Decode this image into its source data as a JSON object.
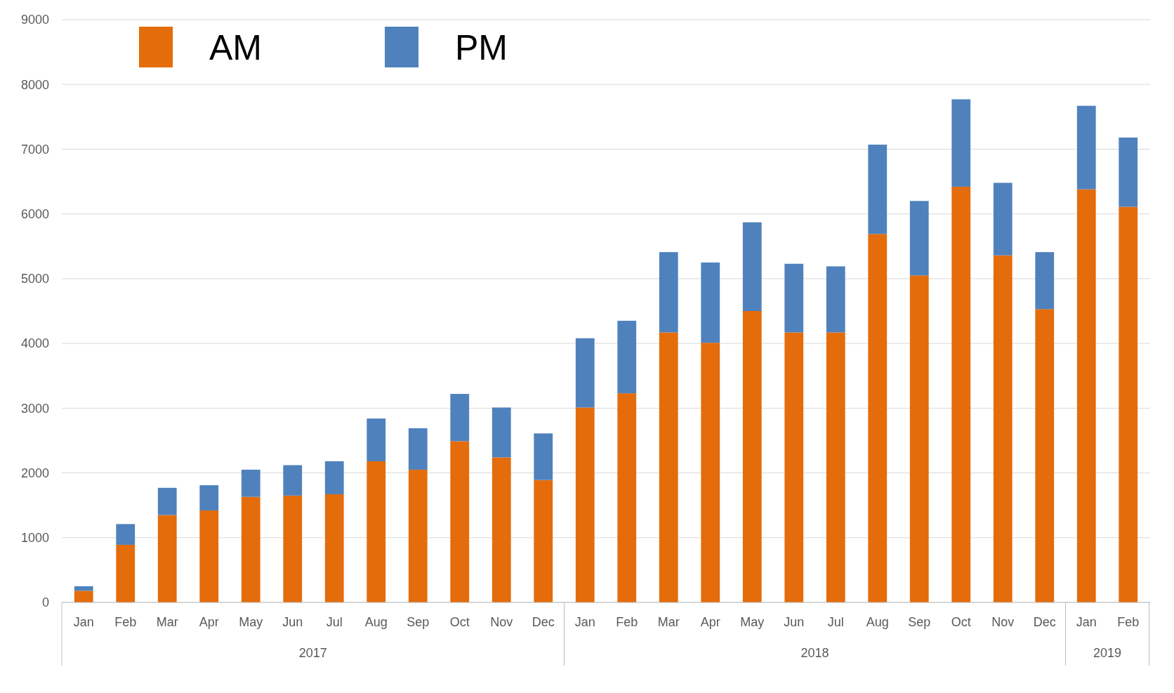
{
  "chart_data": {
    "type": "bar",
    "stacked": true,
    "categories": [
      "Jan",
      "Feb",
      "Mar",
      "Apr",
      "May",
      "Jun",
      "Jul",
      "Aug",
      "Sep",
      "Oct",
      "Nov",
      "Dec",
      "Jan",
      "Feb",
      "Mar",
      "Apr",
      "May",
      "Jun",
      "Jul",
      "Aug",
      "Sep",
      "Oct",
      "Nov",
      "Dec",
      "Jan",
      "Feb"
    ],
    "series": [
      {
        "name": "AM",
        "color": "#e46c0a",
        "values": [
          180,
          890,
          1350,
          1420,
          1630,
          1650,
          1670,
          2180,
          2050,
          2490,
          2240,
          1890,
          3010,
          3230,
          4170,
          4010,
          4500,
          4170,
          4170,
          5690,
          5050,
          6420,
          5360,
          4530,
          6380,
          6110
        ]
      },
      {
        "name": "PM",
        "color": "#4f81bd",
        "values": [
          70,
          320,
          420,
          390,
          420,
          470,
          510,
          660,
          640,
          730,
          770,
          720,
          1070,
          1120,
          1240,
          1240,
          1370,
          1060,
          1020,
          1380,
          1150,
          1350,
          1120,
          880,
          1290,
          1070
        ]
      }
    ],
    "ylim": [
      0,
      9000
    ],
    "yticks": [
      0,
      1000,
      2000,
      3000,
      4000,
      5000,
      6000,
      7000,
      8000,
      9000
    ],
    "grid": "y",
    "legend": "top left",
    "annotations": [
      "2017",
      "2018",
      "2019"
    ]
  }
}
